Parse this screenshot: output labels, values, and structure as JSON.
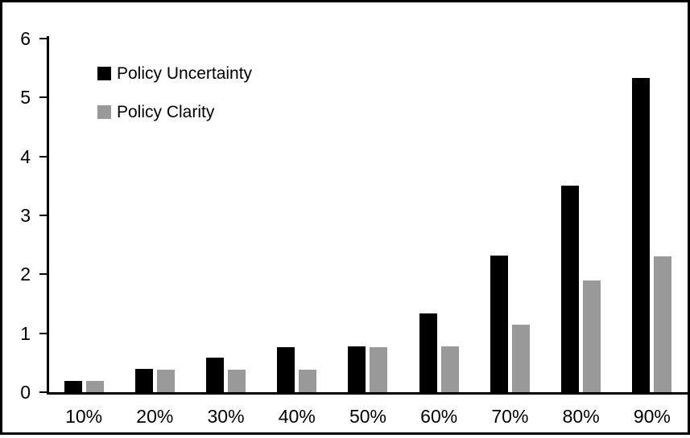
{
  "chart_data": {
    "type": "bar",
    "categories": [
      "10%",
      "20%",
      "30%",
      "40%",
      "50%",
      "60%",
      "70%",
      "80%",
      "90%"
    ],
    "series": [
      {
        "name": "Policy Uncertainty",
        "color": "#000000",
        "values": [
          0.19,
          0.39,
          0.58,
          0.76,
          0.78,
          1.34,
          2.32,
          3.5,
          5.33
        ]
      },
      {
        "name": "Policy Clarity",
        "color": "#999999",
        "values": [
          0.19,
          0.38,
          0.38,
          0.38,
          0.77,
          0.78,
          1.15,
          1.9,
          2.31
        ]
      }
    ],
    "ylim": [
      0,
      6
    ],
    "yticks": [
      0,
      1,
      2,
      3,
      4,
      5,
      6
    ],
    "grid": false,
    "legend_position": "top-left",
    "axis_color": "#000000",
    "background_color": "#ffffff"
  }
}
